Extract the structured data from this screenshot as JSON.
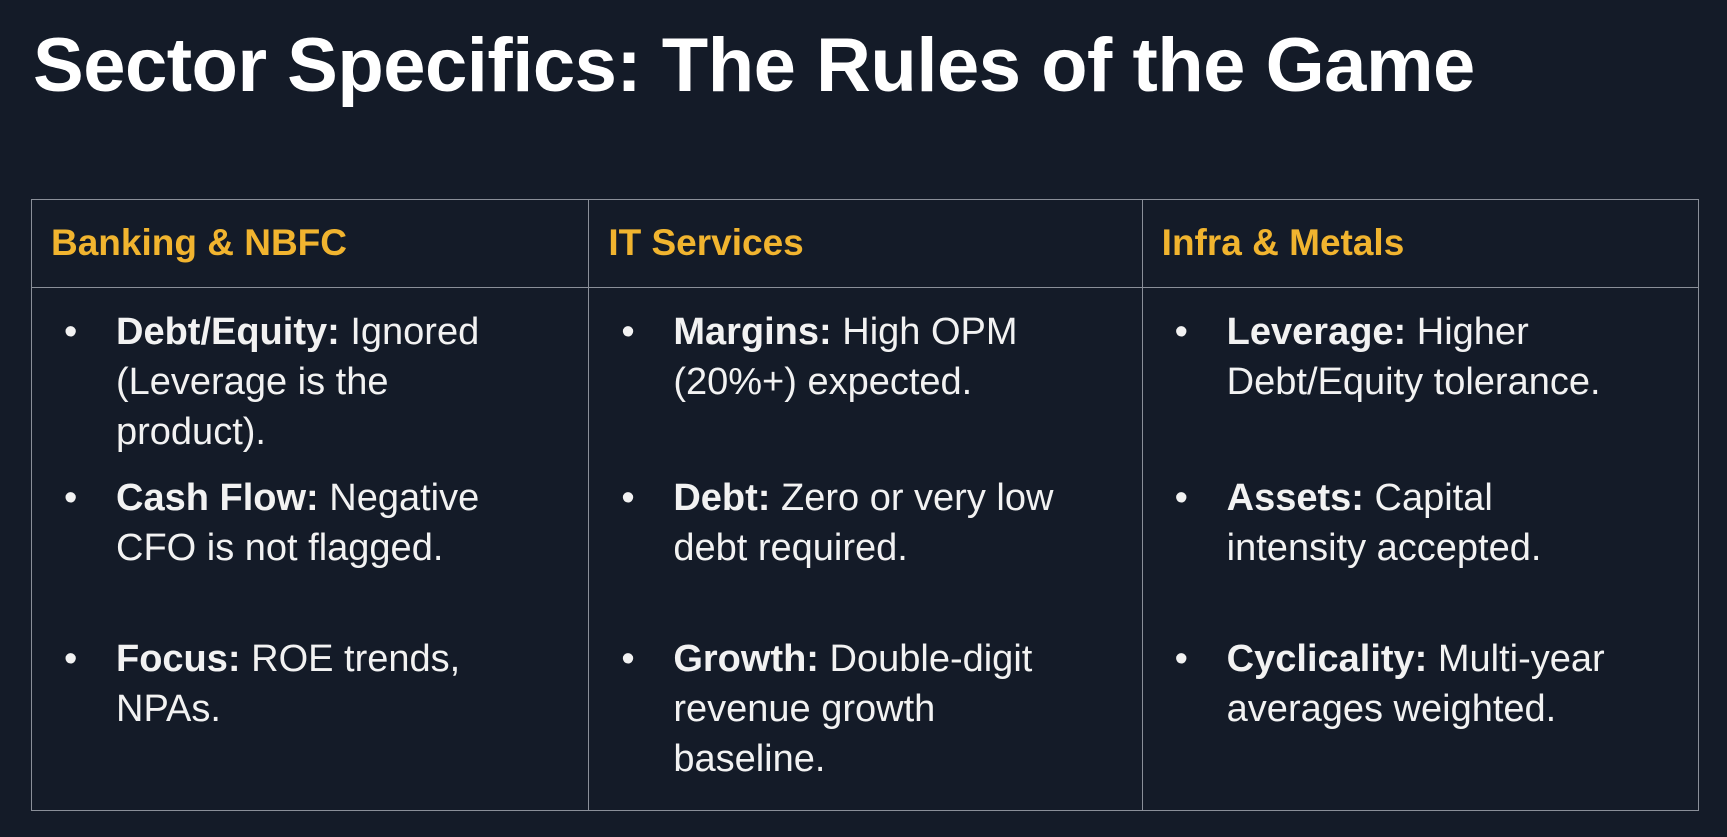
{
  "title": "Sector Specifics: The Rules of the Game",
  "table": {
    "columns": [
      {
        "header": "Banking & NBFC",
        "items": [
          {
            "label": "Debt/Equity:",
            "text": "Ignored (Leverage is the product)."
          },
          {
            "label": "Cash Flow:",
            "text": "Negative CFO is not flagged."
          },
          {
            "label": "Focus:",
            "text": "ROE trends, NPAs."
          }
        ]
      },
      {
        "header": "IT Services",
        "items": [
          {
            "label": "Margins:",
            "text": "High OPM (20%+) expected."
          },
          {
            "label": "Debt:",
            "text": "Zero or very low debt required."
          },
          {
            "label": "Growth:",
            "text": "Double-digit revenue growth baseline."
          }
        ]
      },
      {
        "header": "Infra & Metals",
        "items": [
          {
            "label": "Leverage:",
            "text": "Higher Debt/Equity tolerance."
          },
          {
            "label": "Assets:",
            "text": "Capital intensity accepted."
          },
          {
            "label": "Cyclicality:",
            "text": "Multi-year averages weighted."
          }
        ]
      }
    ]
  }
}
